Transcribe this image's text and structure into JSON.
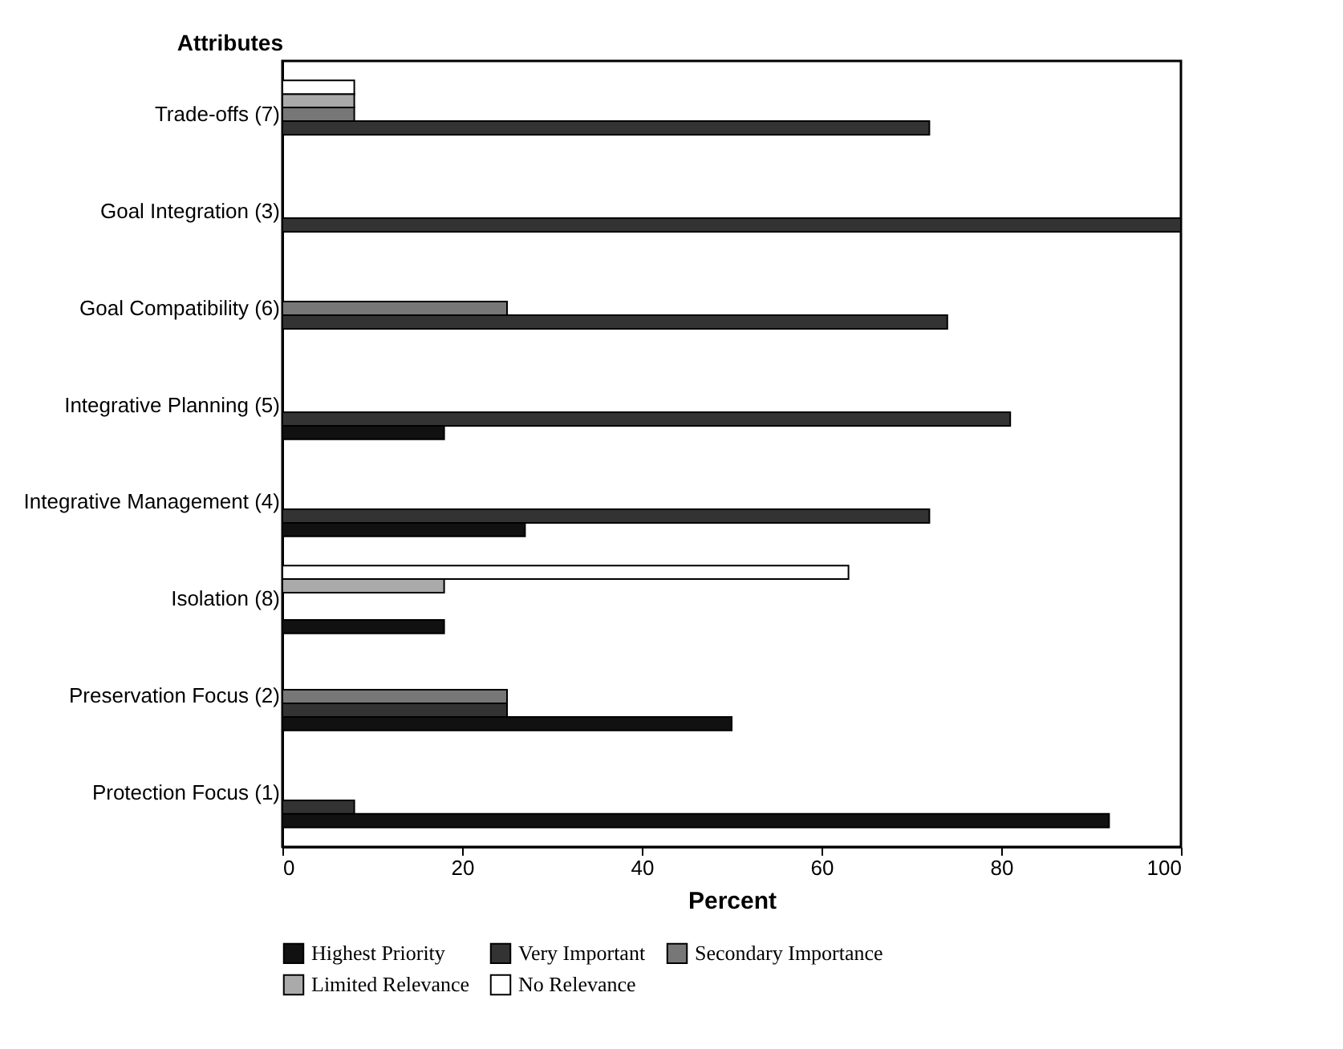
{
  "chart_data": {
    "type": "bar",
    "orientation": "horizontal",
    "xlabel": "Percent",
    "ylabel": "Attributes",
    "categories": [
      "Trade-offs (7)",
      "Goal Integration (3)",
      "Goal Compatibility (6)",
      "Integrative Planning (5)",
      "Integrative Management  (4)",
      "Isolation (8)",
      "Preservation Focus (2)",
      "Protection Focus (1)"
    ],
    "series": [
      {
        "name": "Highest Priority",
        "color": "#111111",
        "values": [
          null,
          null,
          null,
          18,
          27,
          18,
          50,
          92
        ]
      },
      {
        "name": "Very Important",
        "color": "#333333",
        "values": [
          72,
          100,
          74,
          81,
          72,
          null,
          25,
          8
        ]
      },
      {
        "name": "Secondary Importance",
        "color": "#777777",
        "values": [
          8,
          null,
          25,
          null,
          null,
          null,
          25,
          null
        ]
      },
      {
        "name": "Limited Relevance",
        "color": "#aaaaaa",
        "values": [
          8,
          null,
          null,
          null,
          null,
          18,
          null,
          null
        ]
      },
      {
        "name": "No Relevance",
        "color": "#ffffff",
        "values": [
          8,
          null,
          null,
          null,
          null,
          63,
          null,
          null
        ]
      }
    ],
    "xlim": [
      0,
      100
    ],
    "xticks": [
      0,
      20,
      40,
      60,
      80,
      100
    ],
    "legend": "bottom"
  }
}
